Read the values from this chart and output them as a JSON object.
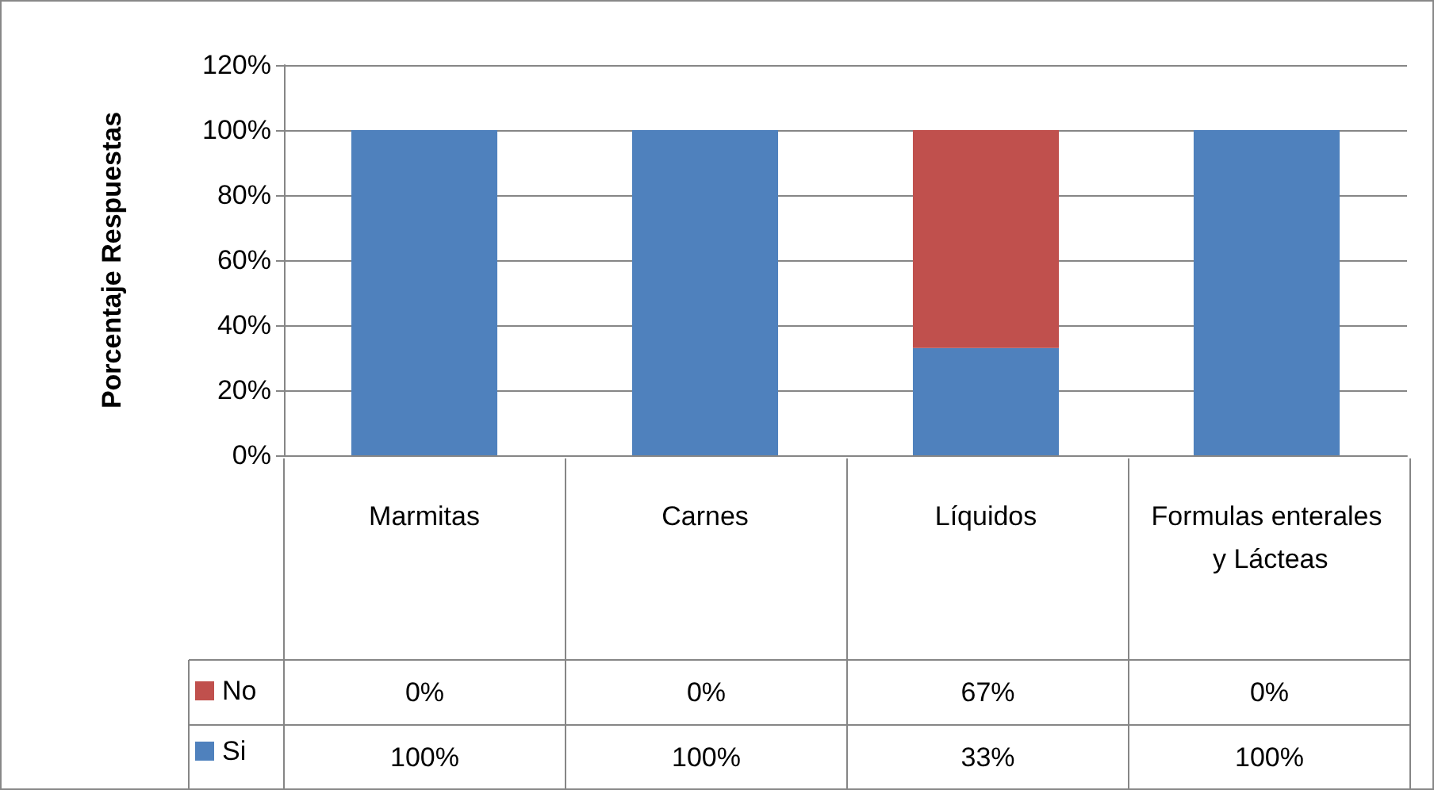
{
  "chart_data": {
    "type": "bar",
    "stacked": true,
    "ylabel": "Porcentaje Respuestas",
    "categories": [
      "Marmitas",
      "Carnes",
      "Líquidos",
      "Formulas enterales y Lácteas"
    ],
    "series": [
      {
        "name": "Si",
        "color": "#4f81bd",
        "values": [
          100,
          100,
          33,
          100
        ],
        "value_labels": [
          "100%",
          "100%",
          "33%",
          "100%"
        ]
      },
      {
        "name": "No",
        "color": "#c0504d",
        "values": [
          0,
          0,
          67,
          0
        ],
        "value_labels": [
          "0%",
          "0%",
          "67%",
          "0%"
        ]
      }
    ],
    "ylim": [
      0,
      120
    ],
    "yticks": [
      {
        "value": 0,
        "label": "0%"
      },
      {
        "value": 20,
        "label": "20%"
      },
      {
        "value": 40,
        "label": "40%"
      },
      {
        "value": 60,
        "label": "60%"
      },
      {
        "value": 80,
        "label": "80%"
      },
      {
        "value": 100,
        "label": "100%"
      },
      {
        "value": 120,
        "label": "120%"
      }
    ],
    "grid": "y",
    "legend": "bottom left"
  }
}
